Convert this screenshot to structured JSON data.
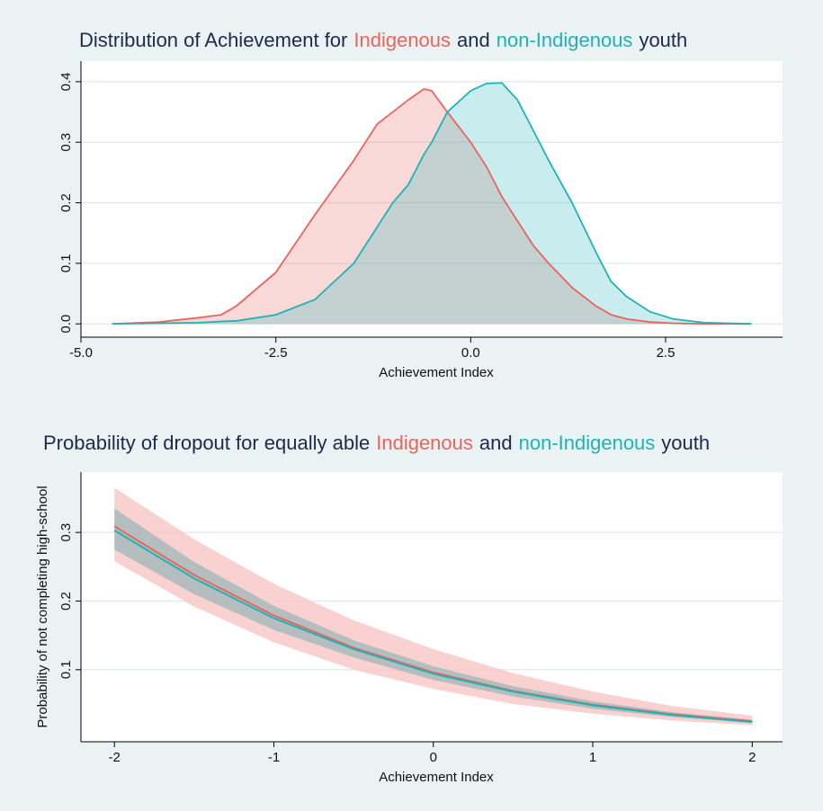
{
  "chart_data": [
    {
      "type": "area",
      "title": [
        {
          "text": "Distribution of Achievement for",
          "color": "#1e2a4a"
        },
        {
          "text": "Indigenous",
          "color": "#e8655f"
        },
        {
          "text": "and",
          "color": "#1e2a4a"
        },
        {
          "text": "non-Indigenous",
          "color": "#1fb2b6"
        },
        {
          "text": "youth",
          "color": "#1e2a4a"
        }
      ],
      "x_label": "Achievement Index",
      "x": [
        -4.6,
        -4,
        -3.5,
        -3.2,
        -3,
        -2.5,
        -2,
        -1.5,
        -1.2,
        -1,
        -0.8,
        -0.6,
        -0.5,
        -0.3,
        0,
        0.2,
        0.4,
        0.6,
        0.8,
        1,
        1.3,
        1.6,
        1.8,
        2,
        2.3,
        2.6,
        3,
        3.6
      ],
      "series": [
        {
          "name": "Indigenous",
          "color": "#e8655f",
          "values": [
            0,
            0.003,
            0.01,
            0.015,
            0.03,
            0.085,
            0.18,
            0.27,
            0.33,
            0.35,
            0.37,
            0.388,
            0.385,
            0.35,
            0.3,
            0.26,
            0.21,
            0.17,
            0.13,
            0.1,
            0.06,
            0.03,
            0.015,
            0.008,
            0.003,
            0.001,
            0,
            0
          ]
        },
        {
          "name": "non-Indigenous",
          "color": "#1fb2b6",
          "values": [
            0,
            0.001,
            0.002,
            0.004,
            0.005,
            0.015,
            0.04,
            0.1,
            0.16,
            0.2,
            0.23,
            0.28,
            0.3,
            0.35,
            0.385,
            0.397,
            0.398,
            0.37,
            0.32,
            0.27,
            0.2,
            0.12,
            0.07,
            0.045,
            0.02,
            0.008,
            0.002,
            0
          ]
        }
      ],
      "xlim": [
        -5,
        4
      ],
      "ylim": [
        -0.022,
        0.434
      ],
      "xticks": [
        {
          "value": -5,
          "label": "-5.0"
        },
        -2.5,
        {
          "value": 0,
          "label": "0.0"
        },
        2.5
      ],
      "yticks": [
        {
          "value": 0,
          "label": "0.0"
        },
        0.1,
        0.2,
        0.3,
        0.4
      ],
      "grid": true
    },
    {
      "type": "line",
      "title": [
        {
          "text": "Probability of dropout for equally able",
          "color": "#1e2a4a"
        },
        {
          "text": "Indigenous",
          "color": "#e8655f"
        },
        {
          "text": "and",
          "color": "#1e2a4a"
        },
        {
          "text": "non-Indigenous",
          "color": "#1fb2b6"
        },
        {
          "text": "youth",
          "color": "#1e2a4a"
        }
      ],
      "x_label": "Achievement Index",
      "y_label": "Probability of not completing high-school",
      "x": [
        -2,
        -1.5,
        -1,
        -0.5,
        0,
        0.5,
        1,
        1.5,
        2
      ],
      "series": [
        {
          "name": "Indigenous",
          "color": "#e8655f",
          "band_color": "#f8c9c9",
          "values": [
            0.309,
            0.238,
            0.179,
            0.132,
            0.096,
            0.069,
            0.049,
            0.035,
            0.025
          ],
          "upper": [
            0.365,
            0.29,
            0.225,
            0.172,
            0.13,
            0.095,
            0.068,
            0.047,
            0.033
          ],
          "lower": [
            0.258,
            0.192,
            0.14,
            0.1,
            0.072,
            0.05,
            0.036,
            0.026,
            0.019
          ]
        },
        {
          "name": "non-Indigenous",
          "color": "#1fb2b6",
          "band_color": "#8fb3b3",
          "values": [
            0.303,
            0.233,
            0.175,
            0.13,
            0.094,
            0.068,
            0.048,
            0.034,
            0.024
          ],
          "upper": [
            0.335,
            0.257,
            0.193,
            0.143,
            0.105,
            0.076,
            0.054,
            0.038,
            0.027
          ],
          "lower": [
            0.275,
            0.21,
            0.158,
            0.118,
            0.085,
            0.061,
            0.043,
            0.031,
            0.022
          ]
        }
      ],
      "xlim": [
        -2.21,
        2.19
      ],
      "ylim": [
        -0.005,
        0.388
      ],
      "xticks": [
        -2,
        -1,
        0,
        1,
        2
      ],
      "yticks": [
        0.1,
        0.2,
        0.3
      ],
      "grid": true
    }
  ]
}
